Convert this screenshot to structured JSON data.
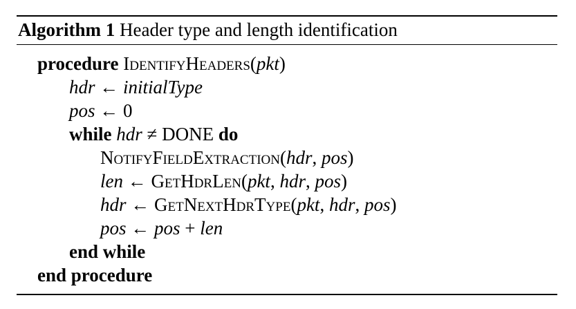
{
  "caption": {
    "label": "Algorithm 1",
    "title": "Header type and length identification"
  },
  "lines": {
    "l1": {
      "kw": "procedure",
      "fn": "IdentifyHeaders",
      "open": "(",
      "arg": "pkt",
      "close": ")"
    },
    "l2": {
      "a": "hdr",
      "op": " ← ",
      "b": "initialType"
    },
    "l3": {
      "a": "pos",
      "op": " ← ",
      "b": "0"
    },
    "l4": {
      "kw1": "while",
      "a": "hdr",
      "op": " ≠ ",
      "b": "DONE",
      "kw2": "do"
    },
    "l5": {
      "fn": "NotifyFieldExtraction",
      "open": "(",
      "a": "hdr",
      "sep": ", ",
      "b": "pos",
      "close": ")"
    },
    "l6": {
      "lhs": "len",
      "op": " ← ",
      "fn": "GetHdrLen",
      "open": "(",
      "a": "pkt",
      "sep1": ", ",
      "b": "hdr",
      "sep2": ", ",
      "c": "pos",
      "close": ")"
    },
    "l7": {
      "lhs": "hdr",
      "op": " ← ",
      "fn": "GetNextHdrType",
      "open": "(",
      "a": "pkt",
      "sep1": ", ",
      "b": "hdr",
      "sep2": ", ",
      "c": "pos",
      "close": ")"
    },
    "l8": {
      "lhs": "pos",
      "op": " ← ",
      "a": "pos",
      "plus": " + ",
      "b": "len"
    },
    "l9": {
      "kw": "end while"
    },
    "l10": {
      "kw": "end procedure"
    }
  }
}
